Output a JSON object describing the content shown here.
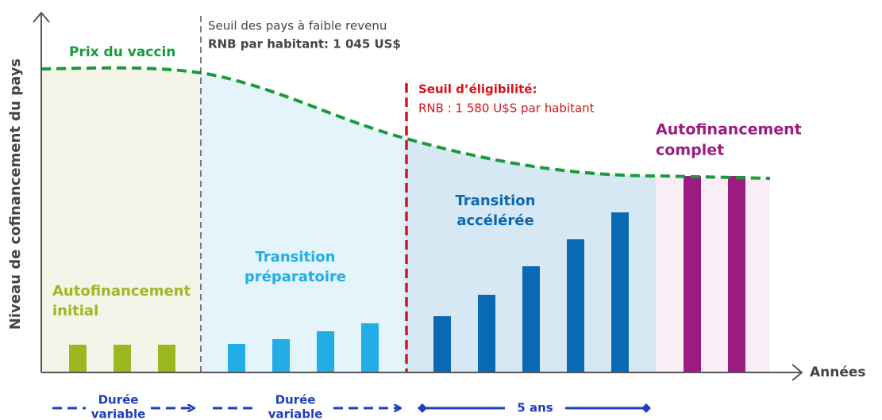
{
  "y_axis_label": "Niveau de cofinancement du pays",
  "x_axis_label": "Années",
  "curve_label": "Prix du vaccin",
  "low_income": {
    "line1": "Seuil des pays à faible revenu",
    "line2": "RNB par habitant: 1 045 US$"
  },
  "eligibility": {
    "line1": "Seuil d’éligibilité:",
    "line2": "RNB : 1 580 U$S par habitant"
  },
  "phases": [
    {
      "line1": "Autofinancement",
      "line2": "initial"
    },
    {
      "line1": "Transition",
      "line2": "préparatoire"
    },
    {
      "line1": "Transition",
      "line2": "accélérée"
    },
    {
      "line1": "Autofinancement",
      "line2": "complet"
    }
  ],
  "durations": [
    {
      "line1": "Durée",
      "line2": "variable"
    },
    {
      "line1": "Durée",
      "line2": "variable"
    },
    {
      "line1": "5 ans"
    }
  ]
}
